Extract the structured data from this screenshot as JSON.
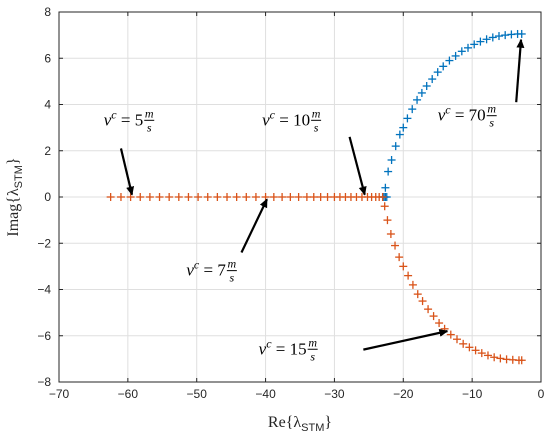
{
  "chart_data": {
    "type": "scatter",
    "xlabel": {
      "main": "Re{λ",
      "sub": "STM",
      "close": "}"
    },
    "ylabel": {
      "main": "Imag{λ",
      "sub": "STM",
      "close": "}"
    },
    "xlim": [
      -70,
      0
    ],
    "ylim": [
      -8,
      8
    ],
    "xticks": [
      -70,
      -60,
      -50,
      -40,
      -30,
      -20,
      -10,
      0
    ],
    "yticks": [
      -8,
      -6,
      -4,
      -2,
      0,
      2,
      4,
      6,
      8
    ],
    "grid": true,
    "marker": "+",
    "colors": {
      "blue": "#0072bd",
      "orange": "#d95319"
    },
    "series": [
      {
        "color": "#0072bd",
        "points": [
          [
            -22.4,
            0
          ],
          [
            -22.6,
            0
          ],
          [
            -22.8,
            0
          ],
          [
            -23.0,
            0
          ],
          [
            -22.6,
            0.4
          ],
          [
            -22.2,
            1.1
          ],
          [
            -21.7,
            1.6
          ],
          [
            -21.1,
            2.2
          ],
          [
            -20.5,
            2.7
          ],
          [
            -20.0,
            3.0
          ],
          [
            -19.4,
            3.4
          ],
          [
            -18.7,
            3.8
          ],
          [
            -18.0,
            4.2
          ],
          [
            -17.3,
            4.5
          ],
          [
            -16.6,
            4.8
          ],
          [
            -15.8,
            5.1
          ],
          [
            -15.0,
            5.4
          ],
          [
            -14.2,
            5.65
          ],
          [
            -13.3,
            5.9
          ],
          [
            -12.4,
            6.1
          ],
          [
            -11.5,
            6.3
          ],
          [
            -10.6,
            6.45
          ],
          [
            -9.7,
            6.6
          ],
          [
            -8.8,
            6.72
          ],
          [
            -7.9,
            6.82
          ],
          [
            -7.0,
            6.9
          ],
          [
            -6.1,
            6.96
          ],
          [
            -5.2,
            7.0
          ],
          [
            -4.3,
            7.03
          ],
          [
            -3.4,
            7.05
          ],
          [
            -2.8,
            7.05
          ]
        ]
      },
      {
        "color": "#d95319",
        "points": [
          [
            -62.5,
            0
          ],
          [
            -61.0,
            0
          ],
          [
            -59.6,
            0
          ],
          [
            -58.2,
            0
          ],
          [
            -56.8,
            0
          ],
          [
            -55.4,
            0
          ],
          [
            -54.0,
            0
          ],
          [
            -52.6,
            0
          ],
          [
            -51.2,
            0
          ],
          [
            -49.8,
            0
          ],
          [
            -48.4,
            0
          ],
          [
            -47.0,
            0
          ],
          [
            -45.6,
            0
          ],
          [
            -44.2,
            0
          ],
          [
            -42.8,
            0
          ],
          [
            -41.4,
            0
          ],
          [
            -40.0,
            0
          ],
          [
            -38.8,
            0
          ],
          [
            -37.6,
            0
          ],
          [
            -36.4,
            0
          ],
          [
            -35.2,
            0
          ],
          [
            -34.0,
            0
          ],
          [
            -33.0,
            0
          ],
          [
            -32.0,
            0
          ],
          [
            -31.0,
            0
          ],
          [
            -30.0,
            0
          ],
          [
            -29.2,
            0
          ],
          [
            -28.4,
            0
          ],
          [
            -27.6,
            0
          ],
          [
            -26.8,
            0
          ],
          [
            -26.0,
            0
          ],
          [
            -25.2,
            0
          ],
          [
            -24.6,
            0
          ],
          [
            -24.0,
            0
          ],
          [
            -23.5,
            0
          ],
          [
            -23.0,
            0
          ],
          [
            -22.7,
            -0.4
          ],
          [
            -22.3,
            -1.0
          ],
          [
            -21.8,
            -1.6
          ],
          [
            -21.2,
            -2.1
          ],
          [
            -20.6,
            -2.6
          ],
          [
            -20.0,
            -3.0
          ],
          [
            -19.3,
            -3.4
          ],
          [
            -18.6,
            -3.8
          ],
          [
            -17.9,
            -4.2
          ],
          [
            -17.2,
            -4.5
          ],
          [
            -16.4,
            -4.85
          ],
          [
            -15.6,
            -5.15
          ],
          [
            -14.8,
            -5.45
          ],
          [
            -14.0,
            -5.7
          ],
          [
            -13.1,
            -5.95
          ],
          [
            -12.2,
            -6.15
          ],
          [
            -11.3,
            -6.35
          ],
          [
            -10.4,
            -6.5
          ],
          [
            -9.5,
            -6.63
          ],
          [
            -8.6,
            -6.75
          ],
          [
            -7.7,
            -6.85
          ],
          [
            -6.8,
            -6.93
          ],
          [
            -5.9,
            -6.98
          ],
          [
            -5.0,
            -7.02
          ],
          [
            -4.1,
            -7.04
          ],
          [
            -3.2,
            -7.06
          ],
          [
            -2.8,
            -7.06
          ]
        ]
      }
    ],
    "annotations": [
      {
        "text": "v",
        "sup": "c",
        "eq": " = 5 ",
        "num": "m",
        "den": "s",
        "tx": -63.5,
        "ty": 3.1,
        "ax0": -61.0,
        "ay0": 2.1,
        "ax1": -59.4,
        "ay1": 0.1
      },
      {
        "text": "v",
        "sup": "c",
        "eq": " = 7 ",
        "num": "m",
        "den": "s",
        "tx": -51.5,
        "ty": -3.4,
        "ax0": -43.5,
        "ay0": -2.4,
        "ax1": -39.8,
        "ay1": -0.1
      },
      {
        "text": "v",
        "sup": "c",
        "eq": " = 10 ",
        "num": "m",
        "den": "s",
        "tx": -40.5,
        "ty": 3.1,
        "ax0": -27.8,
        "ay0": 2.6,
        "ax1": -25.6,
        "ay1": 0.1
      },
      {
        "text": "v",
        "sup": "c",
        "eq": " = 15 ",
        "num": "m",
        "den": "s",
        "tx": -41.0,
        "ty": -6.8,
        "ax0": -25.8,
        "ay0": -6.6,
        "ax1": -13.6,
        "ay1": -5.8
      },
      {
        "text": "v",
        "sup": "c",
        "eq": " = 70 ",
        "num": "m",
        "den": "s",
        "tx": -15.0,
        "ty": 3.3,
        "ax0": -3.6,
        "ay0": 4.1,
        "ax1": -2.9,
        "ay1": 6.8
      }
    ]
  }
}
